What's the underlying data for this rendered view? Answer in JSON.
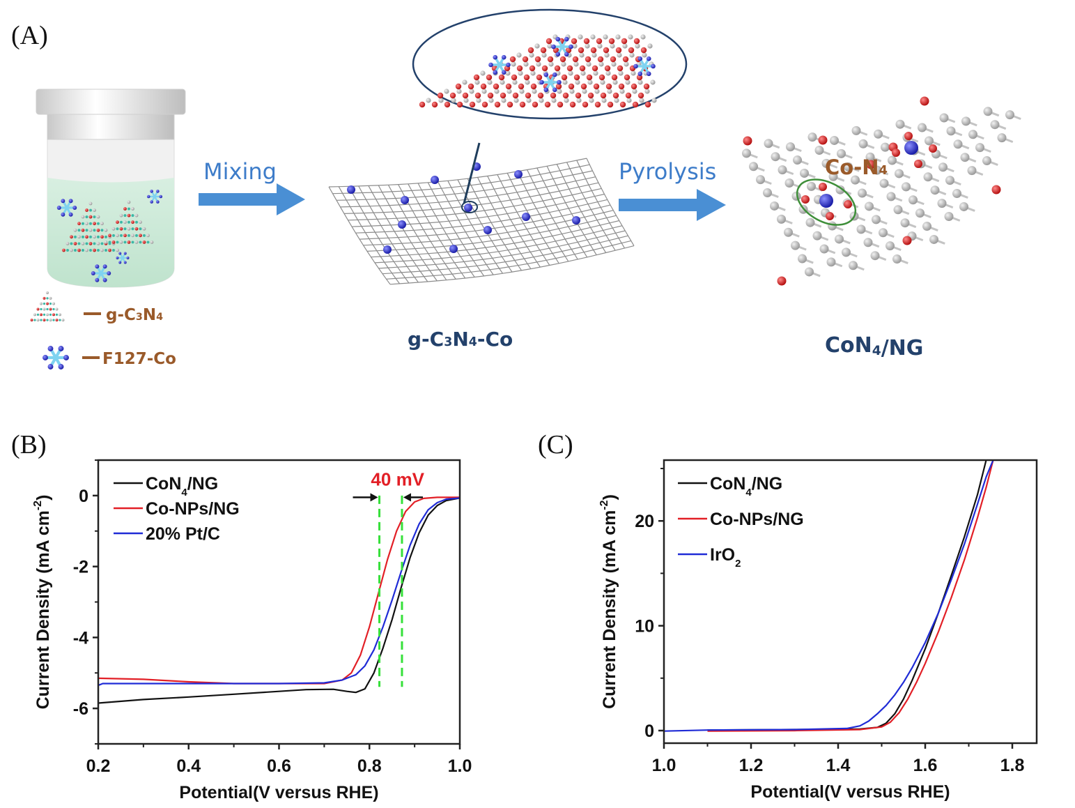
{
  "figure": {
    "panels": {
      "a": {
        "label": "(A)",
        "step1_label": "Mixing",
        "step2_label": "Pyrolysis",
        "legend_gc3n4": "g-C3N4",
        "legend_f127co": "F127-Co",
        "intermediate_label": "g-C3N4-Co",
        "product_label": "CoN4/NG",
        "site_label": "Co-N4",
        "colors": {
          "arrow": "#4a8fd4",
          "process_text": "#3d7cc9",
          "legend_text": "#9a5a2a",
          "product_text": "#23416b",
          "solution": "#cfe9da",
          "carbon_atom": "#bdbdbd",
          "nitrogen_atom": "#d62828",
          "cobalt_atom": "#2b2fc7",
          "highlight_ring": "#3f8f3a"
        }
      },
      "b": {
        "label": "(B)"
      },
      "c": {
        "label": "(C)"
      }
    }
  },
  "chart_data": [
    {
      "id": "B",
      "type": "line",
      "title": "",
      "xlabel": "Potential(V versus RHE)",
      "ylabel": "Current Density (mA cm",
      "ylabel_sup": "-2",
      "ylabel_end": ")",
      "xlim": [
        0.2,
        1.0
      ],
      "ylim": [
        -7,
        1
      ],
      "xticks": [
        0.2,
        0.4,
        0.6,
        0.8,
        1.0
      ],
      "xtick_labels": [
        "0.2",
        "0.4",
        "0.6",
        "0.8",
        "1.0"
      ],
      "yticks": [
        0,
        -2,
        -4,
        -6
      ],
      "ytick_labels": [
        "0",
        "-2",
        "-4",
        "-6"
      ],
      "grid": false,
      "legend_position": "top-left",
      "series": [
        {
          "name": "CoN4/NG",
          "legend_main": "CoN",
          "legend_sub": "4",
          "legend_tail": "/NG",
          "color": "#111111",
          "points": [
            [
              0.2,
              -5.85
            ],
            [
              0.3,
              -5.75
            ],
            [
              0.4,
              -5.68
            ],
            [
              0.5,
              -5.6
            ],
            [
              0.6,
              -5.52
            ],
            [
              0.66,
              -5.47
            ],
            [
              0.72,
              -5.46
            ],
            [
              0.75,
              -5.52
            ],
            [
              0.77,
              -5.55
            ],
            [
              0.79,
              -5.45
            ],
            [
              0.81,
              -5.0
            ],
            [
              0.83,
              -4.3
            ],
            [
              0.85,
              -3.5
            ],
            [
              0.87,
              -2.6
            ],
            [
              0.89,
              -1.75
            ],
            [
              0.91,
              -1.05
            ],
            [
              0.93,
              -0.55
            ],
            [
              0.95,
              -0.28
            ],
            [
              0.97,
              -0.14
            ],
            [
              1.0,
              -0.07
            ]
          ]
        },
        {
          "name": "Co-NPs/NG",
          "legend_main": "Co-NPs/NG",
          "legend_sub": "",
          "legend_tail": "",
          "color": "#e21f26",
          "points": [
            [
              0.2,
              -5.15
            ],
            [
              0.3,
              -5.18
            ],
            [
              0.4,
              -5.25
            ],
            [
              0.5,
              -5.3
            ],
            [
              0.6,
              -5.3
            ],
            [
              0.7,
              -5.3
            ],
            [
              0.74,
              -5.2
            ],
            [
              0.76,
              -5.0
            ],
            [
              0.78,
              -4.5
            ],
            [
              0.8,
              -3.7
            ],
            [
              0.82,
              -2.75
            ],
            [
              0.84,
              -1.8
            ],
            [
              0.86,
              -1.0
            ],
            [
              0.88,
              -0.45
            ],
            [
              0.9,
              -0.18
            ],
            [
              0.92,
              -0.08
            ],
            [
              0.95,
              -0.05
            ],
            [
              1.0,
              -0.05
            ]
          ]
        },
        {
          "name": "20% Pt/C",
          "legend_main": "20% Pt/C",
          "legend_sub": "",
          "legend_tail": "",
          "color": "#1f2bd6",
          "points": [
            [
              0.2,
              -5.35
            ],
            [
              0.21,
              -5.3
            ],
            [
              0.3,
              -5.3
            ],
            [
              0.4,
              -5.3
            ],
            [
              0.5,
              -5.3
            ],
            [
              0.6,
              -5.3
            ],
            [
              0.7,
              -5.28
            ],
            [
              0.74,
              -5.2
            ],
            [
              0.77,
              -5.05
            ],
            [
              0.79,
              -4.8
            ],
            [
              0.81,
              -4.35
            ],
            [
              0.83,
              -3.7
            ],
            [
              0.85,
              -2.95
            ],
            [
              0.87,
              -2.15
            ],
            [
              0.89,
              -1.4
            ],
            [
              0.91,
              -0.8
            ],
            [
              0.93,
              -0.4
            ],
            [
              0.95,
              -0.2
            ],
            [
              0.97,
              -0.1
            ],
            [
              1.0,
              -0.07
            ]
          ]
        }
      ],
      "annotations": {
        "gap_text": "40 mV",
        "gap_color": "#e21f26",
        "guide_color": "#36e03a",
        "guide_x": [
          0.822,
          0.872
        ],
        "guide_yrange": [
          -5.0,
          -0.0
        ],
        "arrow_y": -0.05
      }
    },
    {
      "id": "C",
      "type": "line",
      "title": "",
      "xlabel": "Potential(V versus RHE)",
      "ylabel": "Current Density (mA cm",
      "ylabel_sup": "-2",
      "ylabel_end": ")",
      "xlim": [
        1.0,
        1.856
      ],
      "ylim": [
        -1.2,
        25.8
      ],
      "xticks": [
        1.0,
        1.2,
        1.4,
        1.6,
        1.8
      ],
      "xtick_labels": [
        "1.0",
        "1.2",
        "1.4",
        "1.6",
        "1.8"
      ],
      "yticks": [
        0,
        10,
        20
      ],
      "ytick_labels": [
        "0",
        "10",
        "20"
      ],
      "grid": false,
      "legend_position": "top-left",
      "series": [
        {
          "name": "CoN4/NG",
          "legend_main": "CoN",
          "legend_sub": "4",
          "legend_tail": "/NG",
          "color": "#111111",
          "points": [
            [
              1.1,
              0.05
            ],
            [
              1.3,
              0.1
            ],
            [
              1.45,
              0.15
            ],
            [
              1.49,
              0.3
            ],
            [
              1.51,
              0.7
            ],
            [
              1.53,
              1.6
            ],
            [
              1.55,
              3.0
            ],
            [
              1.57,
              4.8
            ],
            [
              1.6,
              7.8
            ],
            [
              1.63,
              11.2
            ],
            [
              1.66,
              14.8
            ],
            [
              1.69,
              18.5
            ],
            [
              1.72,
              22.5
            ],
            [
              1.74,
              25.8
            ]
          ]
        },
        {
          "name": "Co-NPs/NG",
          "legend_main": "Co-NPs/NG",
          "legend_sub": "",
          "legend_tail": "",
          "color": "#e21f26",
          "points": [
            [
              1.1,
              -0.05
            ],
            [
              1.3,
              0.0
            ],
            [
              1.45,
              0.1
            ],
            [
              1.5,
              0.35
            ],
            [
              1.52,
              0.8
            ],
            [
              1.54,
              1.7
            ],
            [
              1.56,
              3.0
            ],
            [
              1.58,
              4.6
            ],
            [
              1.6,
              6.4
            ],
            [
              1.63,
              9.4
            ],
            [
              1.66,
              12.7
            ],
            [
              1.69,
              16.3
            ],
            [
              1.72,
              20.3
            ],
            [
              1.74,
              23.2
            ],
            [
              1.756,
              25.8
            ]
          ]
        },
        {
          "name": "IrO2",
          "legend_main": "IrO",
          "legend_sub": "2",
          "legend_tail": "",
          "color": "#1f2bd6",
          "points": [
            [
              1.0,
              -0.05
            ],
            [
              1.1,
              0.05
            ],
            [
              1.3,
              0.1
            ],
            [
              1.42,
              0.2
            ],
            [
              1.45,
              0.45
            ],
            [
              1.47,
              0.9
            ],
            [
              1.49,
              1.6
            ],
            [
              1.51,
              2.4
            ],
            [
              1.53,
              3.4
            ],
            [
              1.55,
              4.6
            ],
            [
              1.57,
              6.0
            ],
            [
              1.6,
              8.4
            ],
            [
              1.63,
              11.2
            ],
            [
              1.66,
              14.4
            ],
            [
              1.69,
              17.8
            ],
            [
              1.72,
              21.6
            ],
            [
              1.74,
              24.2
            ],
            [
              1.756,
              25.8
            ]
          ]
        }
      ]
    }
  ]
}
